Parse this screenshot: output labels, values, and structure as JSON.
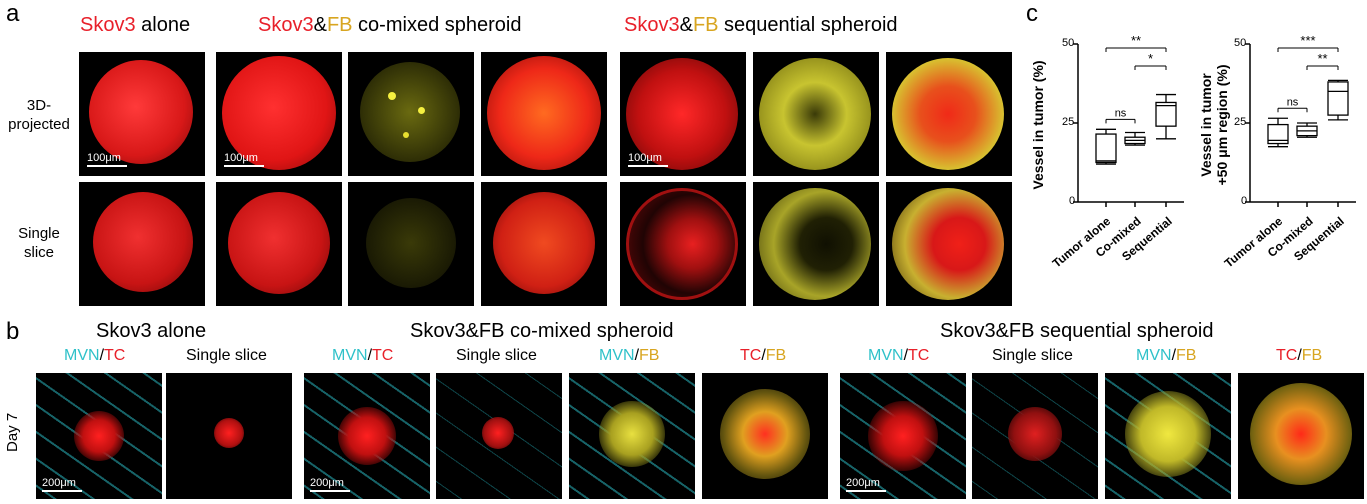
{
  "panel_a": {
    "letter": "a",
    "titles": {
      "alone": {
        "prefix": "Skov3",
        "suffix": " alone"
      },
      "comixed": {
        "a": "Skov3",
        "amp": "&",
        "b": "FB",
        "suffix": " co-mixed spheroid"
      },
      "sequential": {
        "a": "Skov3",
        "amp": "&",
        "b": "FB",
        "suffix": " sequential spheroid"
      }
    },
    "row_labels": {
      "top_l1": "3D-",
      "top_l2": "projected",
      "bottom_l1": "Single",
      "bottom_l2": "slice"
    },
    "scale": "100μm"
  },
  "panel_b": {
    "letter": "b",
    "titles": {
      "alone": "Skov3 alone",
      "comixed": "Skov3&FB co-mixed spheroid",
      "sequential": "Skov3&FB sequential spheroid"
    },
    "sub": {
      "mvn": "MVN",
      "tc": "TC",
      "fb": "FB",
      "slash": "/",
      "single": "Single slice"
    },
    "day_label": "Day 7",
    "scale": "200μm"
  },
  "panel_c": {
    "letter": "c",
    "charts": [
      {
        "ylabel_l1": "Vessel in tumor (%)",
        "ylabel_l2": "",
        "yticks": [
          "50",
          "25",
          "0"
        ],
        "categories": [
          "Tumor alone",
          "Co-mixed",
          "Sequential"
        ],
        "sig": [
          "**",
          "ns",
          "*"
        ]
      },
      {
        "ylabel_l1": "Vessel in tumor",
        "ylabel_l2": "+50 μm region (%)",
        "yticks": [
          "50",
          "25",
          "0"
        ],
        "categories": [
          "Tumor alone",
          "Co-mixed",
          "Sequential"
        ],
        "sig": [
          "***",
          "ns",
          "**"
        ]
      }
    ]
  },
  "chart_data": [
    {
      "type": "box",
      "categories": [
        "Tumor alone",
        "Co-mixed",
        "Sequential"
      ],
      "ylabel": "Vessel in tumor (%)",
      "ylim": [
        0,
        50
      ],
      "boxes": [
        {
          "min": 12,
          "q1": 12.5,
          "median": 13,
          "q3": 21.5,
          "max": 23
        },
        {
          "min": 18,
          "q1": 18.5,
          "median": 19.5,
          "q3": 20.5,
          "max": 22
        },
        {
          "min": 20,
          "q1": 24,
          "median": 30.5,
          "q3": 31.5,
          "max": 34
        }
      ],
      "significance": [
        {
          "pair": [
            "Tumor alone",
            "Sequential"
          ],
          "label": "**"
        },
        {
          "pair": [
            "Tumor alone",
            "Co-mixed"
          ],
          "label": "ns"
        },
        {
          "pair": [
            "Co-mixed",
            "Sequential"
          ],
          "label": "*"
        }
      ]
    },
    {
      "type": "box",
      "categories": [
        "Tumor alone",
        "Co-mixed",
        "Sequential"
      ],
      "ylabel": "Vessel in tumor +50 μm region (%)",
      "ylim": [
        0,
        50
      ],
      "boxes": [
        {
          "min": 17.5,
          "q1": 18.5,
          "median": 19.5,
          "q3": 24.5,
          "max": 26.5
        },
        {
          "min": 20.5,
          "q1": 21,
          "median": 22.5,
          "q3": 24,
          "max": 25
        },
        {
          "min": 26,
          "q1": 27.5,
          "median": 35,
          "q3": 38,
          "max": 38.5
        }
      ],
      "significance": [
        {
          "pair": [
            "Tumor alone",
            "Sequential"
          ],
          "label": "***"
        },
        {
          "pair": [
            "Tumor alone",
            "Co-mixed"
          ],
          "label": "ns"
        },
        {
          "pair": [
            "Co-mixed",
            "Sequential"
          ],
          "label": "**"
        }
      ]
    }
  ]
}
